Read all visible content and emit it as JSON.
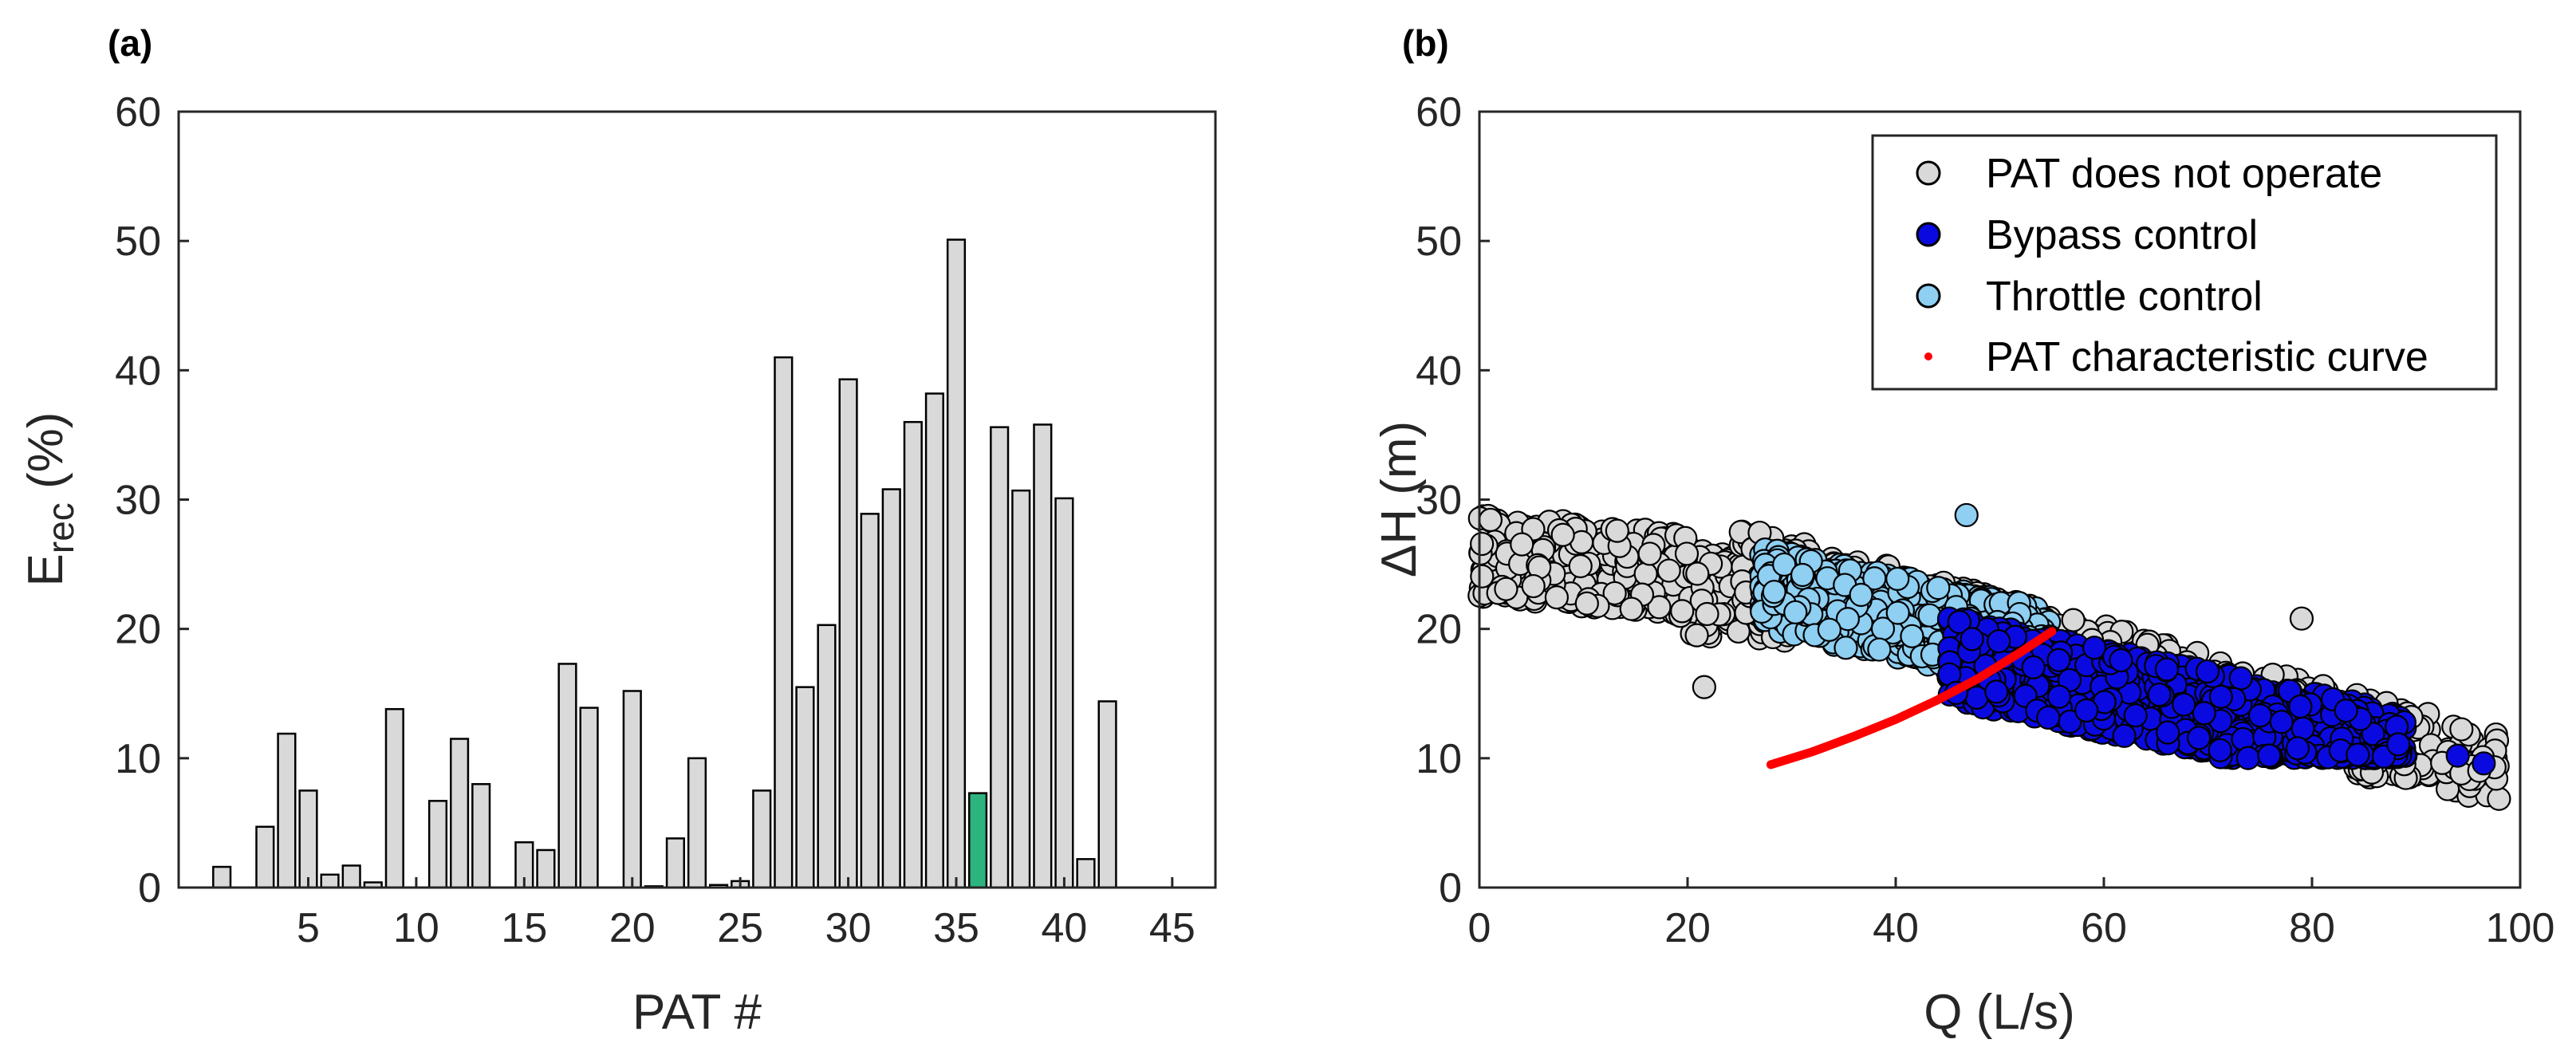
{
  "chart_data": [
    {
      "type": "bar",
      "panel_label": "(a)",
      "title": "",
      "xlabel": "PAT #",
      "ylabel_main": "E",
      "ylabel_sub": "rec",
      "ylabel_tail": " (%)",
      "xlim": [
        -1,
        47
      ],
      "ylim": [
        0,
        60
      ],
      "xticks": [
        5,
        10,
        15,
        20,
        25,
        30,
        35,
        40,
        45
      ],
      "yticks": [
        0,
        10,
        20,
        30,
        40,
        50,
        60
      ],
      "colors": {
        "default": "#d9d9d9",
        "highlight": "#2db37e",
        "edge": "#000000"
      },
      "highlight_category": 36,
      "categories": [
        1,
        2,
        3,
        4,
        5,
        6,
        7,
        8,
        9,
        10,
        11,
        12,
        13,
        14,
        15,
        16,
        17,
        18,
        19,
        20,
        21,
        22,
        23,
        24,
        25,
        26,
        27,
        28,
        29,
        30,
        31,
        32,
        33,
        34,
        35,
        36,
        37,
        38,
        39,
        40,
        41,
        42,
        43
      ],
      "values": [
        1.6,
        0,
        4.7,
        11.9,
        7.5,
        1.0,
        1.7,
        0.4,
        13.8,
        0,
        6.7,
        11.5,
        8.0,
        0,
        3.5,
        2.9,
        17.3,
        13.9,
        0,
        15.2,
        0.1,
        3.8,
        10.0,
        0.2,
        0.5,
        7.5,
        41.0,
        15.5,
        20.3,
        39.3,
        28.9,
        30.8,
        36.0,
        38.2,
        50.1,
        7.3,
        35.6,
        30.7,
        35.8,
        30.1,
        2.2,
        14.4,
        0
      ]
    },
    {
      "type": "scatter",
      "panel_label": "(b)",
      "title": "",
      "xlabel": "Q (L/s)",
      "ylabel": "ΔH (m)",
      "xlim": [
        0,
        100
      ],
      "ylim": [
        0,
        60
      ],
      "xticks": [
        0,
        20,
        40,
        60,
        80,
        100
      ],
      "yticks": [
        0,
        10,
        20,
        30,
        40,
        50,
        60
      ],
      "legend_position": "top-right",
      "series": [
        {
          "name": "PAT does not operate",
          "color": "#d9d9d9",
          "marker": "circle",
          "note": "dense band from Q≈0 ΔH≈26 to Q≈98 ΔH≈9; outliers at (21.6,15.5), (46.8,28.8), (79,20.8)"
        },
        {
          "name": "Bypass control",
          "color": "#0a0ae0",
          "marker": "circle",
          "note": "dense cloud Q≈45–89, ΔH≈10–21; points at (94,10.2), (96.5,9.6)"
        },
        {
          "name": "Throttle control",
          "color": "#8ecff2",
          "marker": "circle",
          "note": "cloud Q≈27–55, ΔH≈16–27"
        },
        {
          "name": "PAT characteristic curve",
          "color": "#ff0000",
          "marker": "line",
          "x": [
            28,
            32,
            36,
            40,
            44,
            48,
            52,
            55
          ],
          "y": [
            9.5,
            10.5,
            11.7,
            13.0,
            14.5,
            16.2,
            18.2,
            19.8
          ]
        }
      ]
    }
  ]
}
